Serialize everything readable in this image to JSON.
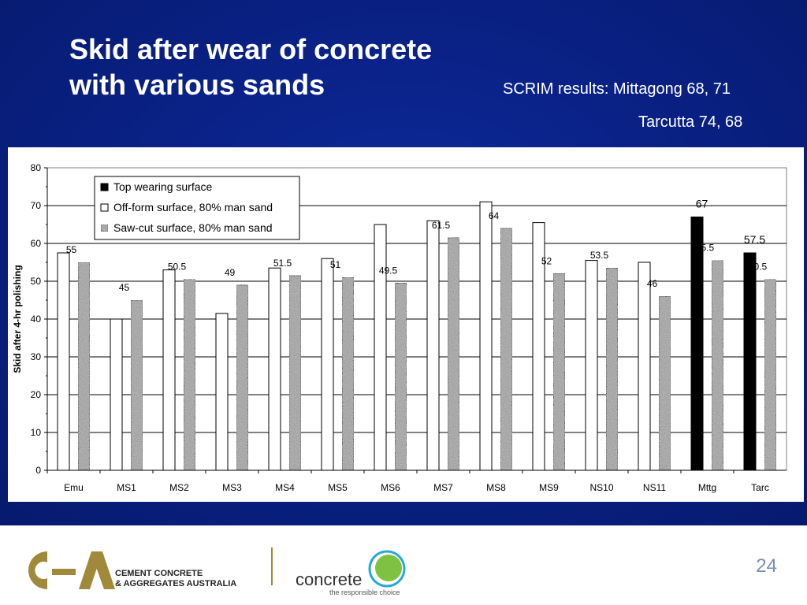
{
  "slide": {
    "title_line1": "Skid after wear of concrete",
    "title_line2": "with various sands",
    "scrim_line1": "SCRIM results: Mittagong 68, 71",
    "scrim_line2": "Tarcutta 74, 68",
    "page_number": "24"
  },
  "footer": {
    "cca_line1": "CEMENT CONCRETE",
    "cca_line2": "& AGGREGATES AUSTRALIA",
    "concrete_word": "concrete",
    "concrete_tagline": "the responsible choice"
  },
  "colors": {
    "background": "#0a2288",
    "top_bar": "#000000",
    "off_form_bar": "#ffffff",
    "saw_cut_bar": "#9a9a9a",
    "logo_gold": "#a08a3a",
    "logo_green": "#7fc241",
    "logo_blue": "#28a8d8"
  },
  "chart_data": {
    "type": "bar",
    "ylabel": "Skid after 4-hr polishing",
    "ylim": [
      0,
      80
    ],
    "yticks": [
      0,
      10,
      20,
      30,
      40,
      50,
      60,
      70,
      80
    ],
    "grid": true,
    "legend_position": "top-left",
    "categories": [
      "Emu",
      "MS1",
      "MS2",
      "MS3",
      "MS4",
      "MS5",
      "MS6",
      "MS7",
      "MS8",
      "MS9",
      "NS10",
      "NS11",
      "Mttg",
      "Tarc"
    ],
    "series": [
      {
        "name": "Top wearing surface",
        "values": [
          null,
          null,
          null,
          null,
          null,
          null,
          null,
          null,
          null,
          null,
          null,
          null,
          67,
          57.5
        ]
      },
      {
        "name": "Off-form surface, 80% man sand",
        "values": [
          57.5,
          40,
          53,
          41.5,
          53.5,
          56,
          65,
          66,
          71,
          65.5,
          55.5,
          55,
          null,
          null
        ]
      },
      {
        "name": "Saw-cut surface, 80% man sand",
        "values": [
          55,
          45,
          50.5,
          49,
          51.5,
          51,
          49.5,
          61.5,
          64,
          52,
          53.5,
          46,
          55.5,
          50.5
        ]
      }
    ],
    "data_labels": [
      {
        "category": "Emu",
        "text": "55"
      },
      {
        "category": "MS1",
        "text": "45"
      },
      {
        "category": "MS2",
        "text": "50.5"
      },
      {
        "category": "MS3",
        "text": "49"
      },
      {
        "category": "MS4",
        "text": "51.5"
      },
      {
        "category": "MS5",
        "text": "51"
      },
      {
        "category": "MS6",
        "text": "49.5"
      },
      {
        "category": "MS7",
        "text": "61.5"
      },
      {
        "category": "MS8",
        "text": "64"
      },
      {
        "category": "MS9",
        "text": "52"
      },
      {
        "category": "NS10",
        "text": "53.5"
      },
      {
        "category": "NS11",
        "text": "46"
      },
      {
        "category": "Mttg",
        "text": "55.5"
      },
      {
        "category": "Tarc",
        "text": "50.5"
      },
      {
        "category": "Mttg",
        "text": "67",
        "large": true
      },
      {
        "category": "Tarc",
        "text": "57.5",
        "large": true
      }
    ]
  }
}
